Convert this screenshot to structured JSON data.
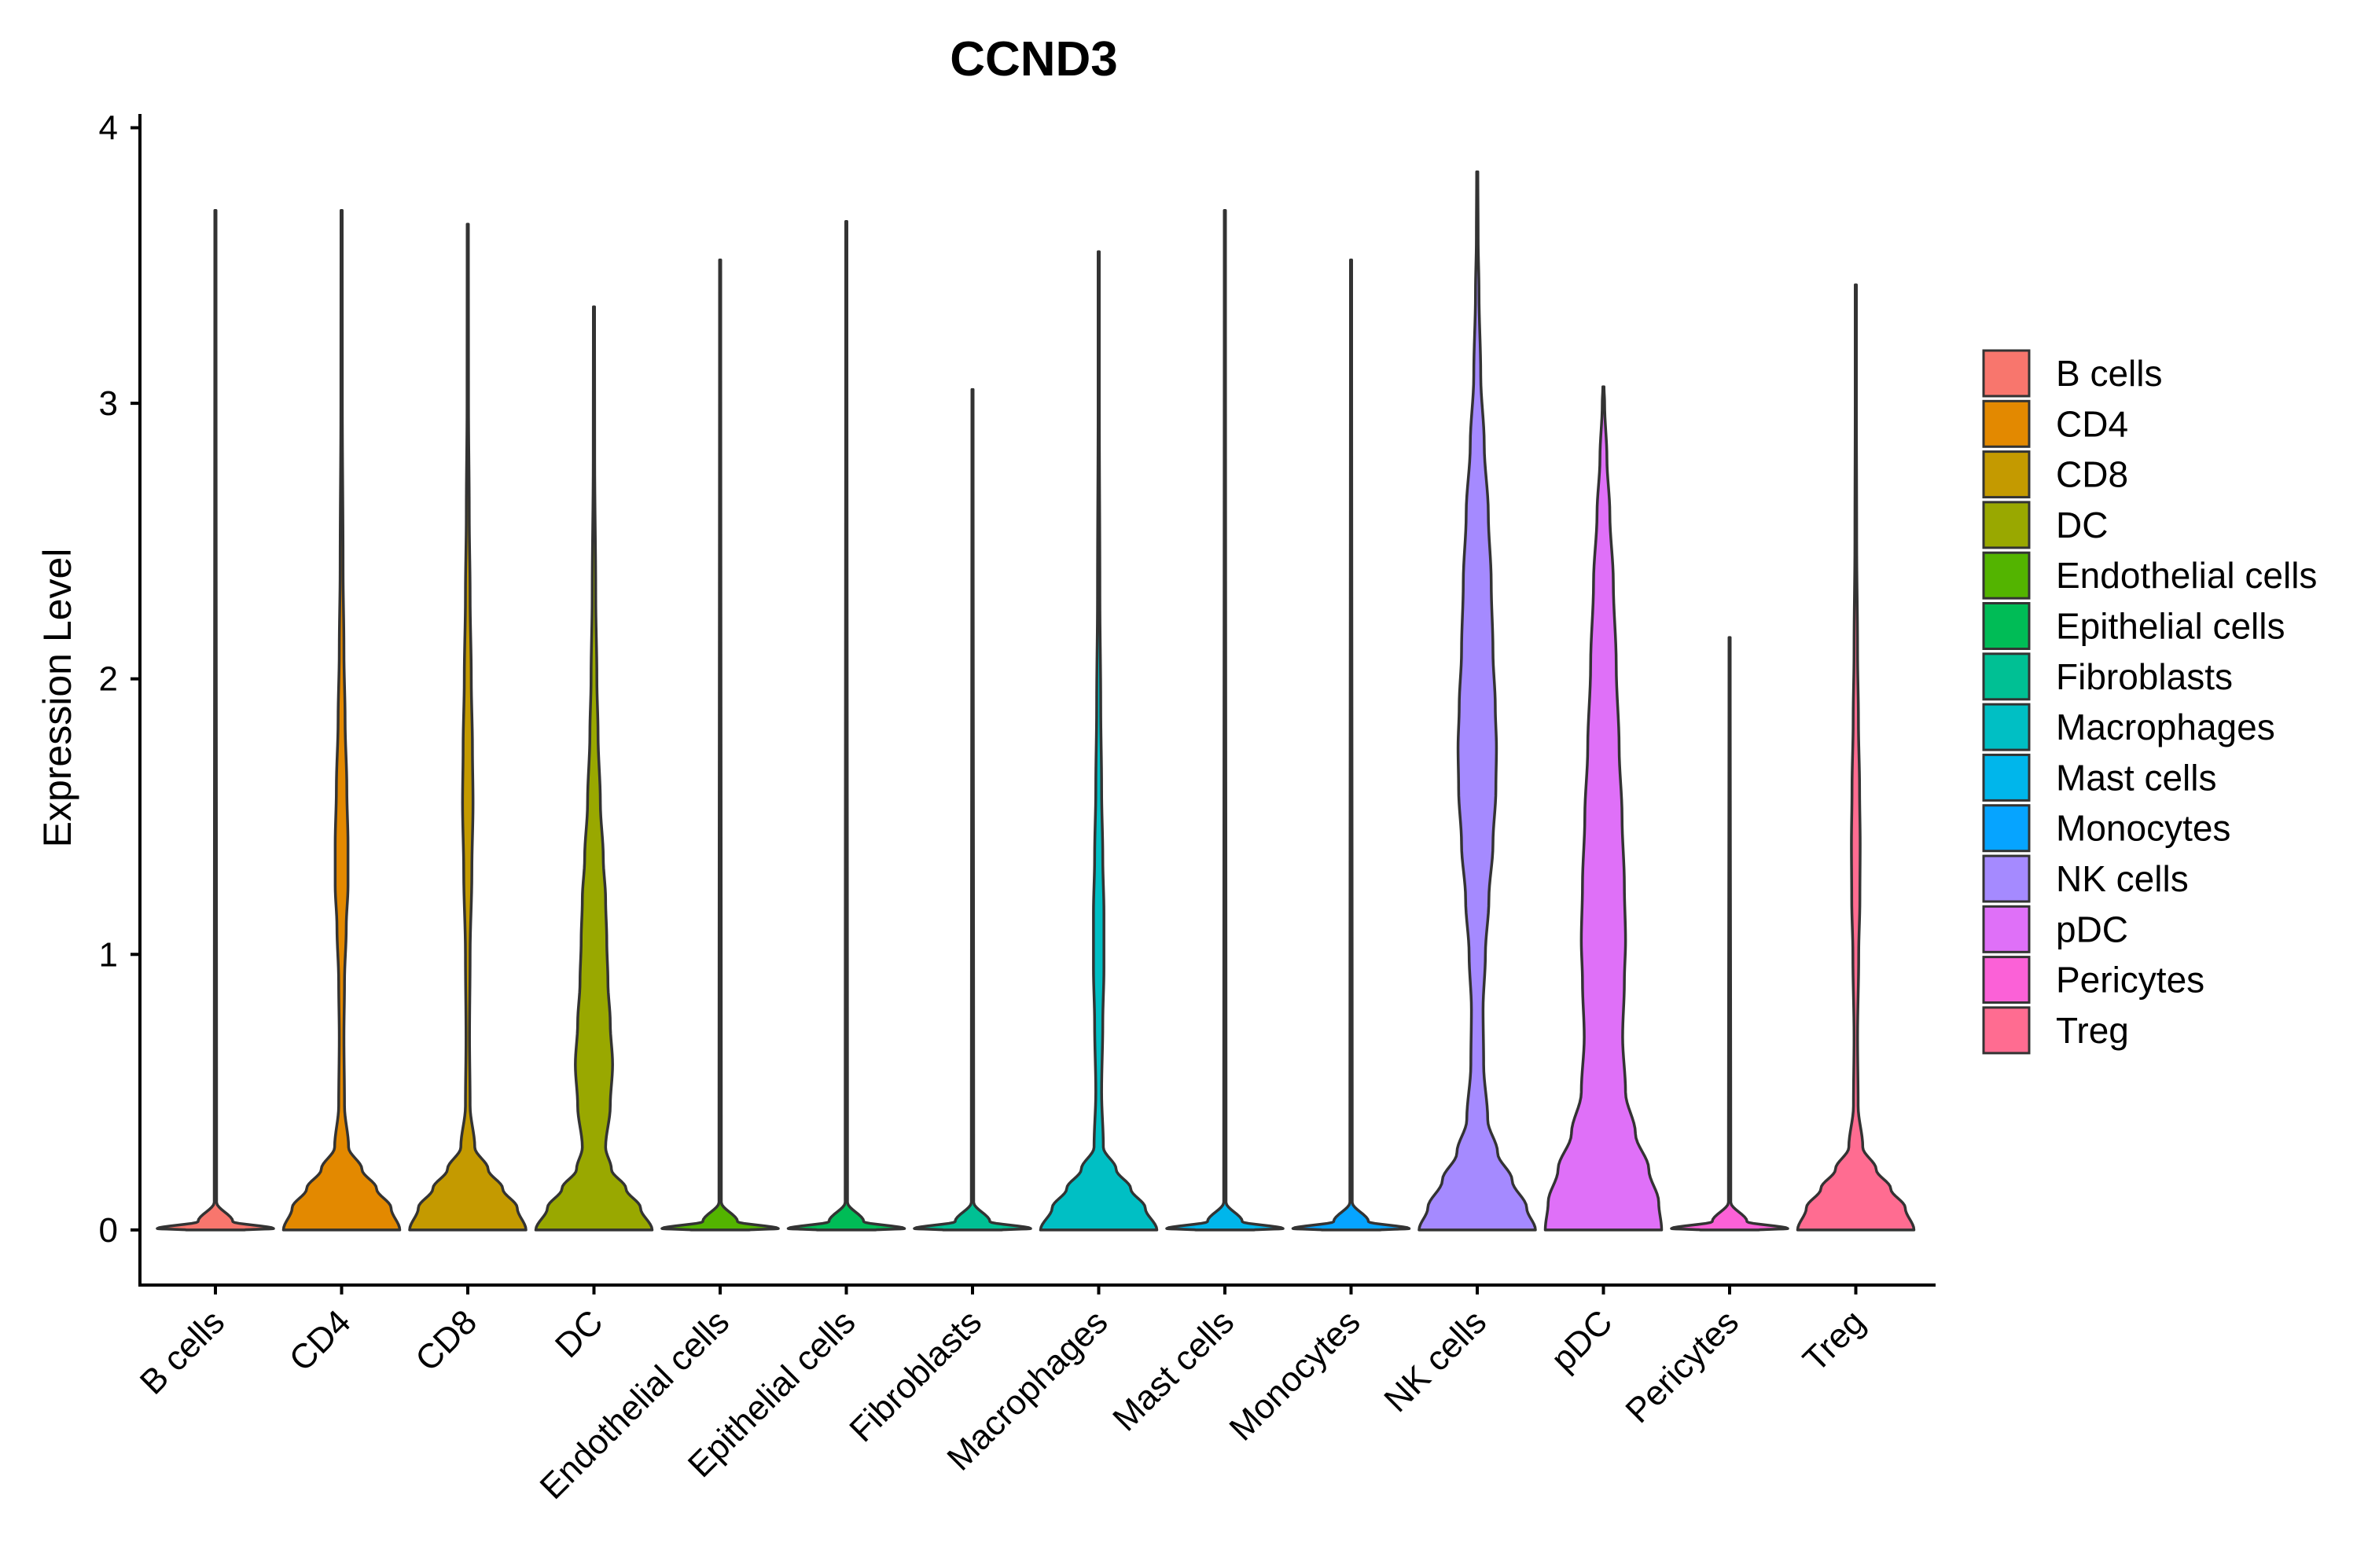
{
  "chart_data": {
    "type": "violin",
    "title": "CCND3",
    "xlabel": "",
    "ylabel": "Expression Level",
    "ylim": [
      -0.2,
      4.05
    ],
    "yticks": [
      0,
      1,
      2,
      3,
      4
    ],
    "yticklabels": [
      "0",
      "1",
      "2",
      "3",
      "4"
    ],
    "categories": [
      "B cells",
      "CD4",
      "CD8",
      "DC",
      "Endothelial cells",
      "Epithelial cells",
      "Fibroblasts",
      "Macrophages",
      "Mast cells",
      "Monocytes",
      "NK cells",
      "pDC",
      "Pericytes",
      "Treg"
    ],
    "series": [
      {
        "name": "B cells",
        "color": "#F8766D",
        "max": 3.7,
        "profile": [
          [
            0,
            0.5
          ],
          [
            0.005,
            1
          ],
          [
            0.03,
            0.3
          ],
          [
            0.1,
            0.02
          ],
          [
            3.7,
            0.01
          ]
        ]
      },
      {
        "name": "CD4",
        "color": "#E38900",
        "max": 3.7,
        "profile": [
          [
            0,
            1
          ],
          [
            0.08,
            0.85
          ],
          [
            0.15,
            0.6
          ],
          [
            0.22,
            0.35
          ],
          [
            0.3,
            0.12
          ],
          [
            0.45,
            0.05
          ],
          [
            0.7,
            0.04
          ],
          [
            0.9,
            0.05
          ],
          [
            1.1,
            0.08
          ],
          [
            1.25,
            0.11
          ],
          [
            1.4,
            0.11
          ],
          [
            1.6,
            0.09
          ],
          [
            1.85,
            0.06
          ],
          [
            2.1,
            0.04
          ],
          [
            2.4,
            0.025
          ],
          [
            3.0,
            0.012
          ],
          [
            3.7,
            0.01
          ]
        ]
      },
      {
        "name": "CD8",
        "color": "#C49A00",
        "max": 3.65,
        "profile": [
          [
            0,
            1
          ],
          [
            0.08,
            0.85
          ],
          [
            0.15,
            0.6
          ],
          [
            0.22,
            0.35
          ],
          [
            0.3,
            0.12
          ],
          [
            0.45,
            0.04
          ],
          [
            0.7,
            0.03
          ],
          [
            1.0,
            0.04
          ],
          [
            1.3,
            0.07
          ],
          [
            1.55,
            0.09
          ],
          [
            1.75,
            0.08
          ],
          [
            2.0,
            0.06
          ],
          [
            2.3,
            0.04
          ],
          [
            2.6,
            0.025
          ],
          [
            3.0,
            0.012
          ],
          [
            3.65,
            0.01
          ]
        ]
      },
      {
        "name": "DC",
        "color": "#99A800",
        "max": 3.35,
        "profile": [
          [
            0,
            1
          ],
          [
            0.08,
            0.8
          ],
          [
            0.15,
            0.55
          ],
          [
            0.22,
            0.3
          ],
          [
            0.3,
            0.2
          ],
          [
            0.45,
            0.28
          ],
          [
            0.6,
            0.32
          ],
          [
            0.75,
            0.28
          ],
          [
            0.9,
            0.24
          ],
          [
            1.05,
            0.22
          ],
          [
            1.2,
            0.2
          ],
          [
            1.35,
            0.16
          ],
          [
            1.55,
            0.11
          ],
          [
            1.8,
            0.07
          ],
          [
            2.0,
            0.05
          ],
          [
            2.3,
            0.03
          ],
          [
            2.8,
            0.012
          ],
          [
            3.35,
            0.01
          ]
        ]
      },
      {
        "name": "Endothelial cells",
        "color": "#53B400",
        "max": 3.52,
        "profile": [
          [
            0,
            0.5
          ],
          [
            0.005,
            1
          ],
          [
            0.03,
            0.3
          ],
          [
            0.1,
            0.02
          ],
          [
            3.52,
            0.01
          ]
        ]
      },
      {
        "name": "Epithelial cells",
        "color": "#00BC56",
        "max": 3.66,
        "profile": [
          [
            0,
            0.5
          ],
          [
            0.005,
            1
          ],
          [
            0.03,
            0.3
          ],
          [
            0.1,
            0.02
          ],
          [
            3.66,
            0.01
          ]
        ]
      },
      {
        "name": "Fibroblasts",
        "color": "#00C094",
        "max": 3.05,
        "profile": [
          [
            0,
            0.5
          ],
          [
            0.005,
            1
          ],
          [
            0.03,
            0.3
          ],
          [
            0.1,
            0.02
          ],
          [
            3.05,
            0.01
          ]
        ]
      },
      {
        "name": "Macrophages",
        "color": "#00BFC4",
        "max": 3.55,
        "profile": [
          [
            0,
            1
          ],
          [
            0.08,
            0.8
          ],
          [
            0.15,
            0.55
          ],
          [
            0.22,
            0.3
          ],
          [
            0.3,
            0.08
          ],
          [
            0.5,
            0.05
          ],
          [
            0.75,
            0.07
          ],
          [
            0.95,
            0.09
          ],
          [
            1.15,
            0.09
          ],
          [
            1.35,
            0.07
          ],
          [
            1.6,
            0.05
          ],
          [
            1.9,
            0.035
          ],
          [
            2.3,
            0.02
          ],
          [
            3.0,
            0.01
          ],
          [
            3.55,
            0.01
          ]
        ]
      },
      {
        "name": "Mast cells",
        "color": "#00B6EB",
        "max": 3.7,
        "profile": [
          [
            0,
            0.5
          ],
          [
            0.005,
            1
          ],
          [
            0.03,
            0.3
          ],
          [
            0.1,
            0.02
          ],
          [
            3.7,
            0.01
          ]
        ]
      },
      {
        "name": "Monocytes",
        "color": "#06A4FF",
        "max": 3.52,
        "profile": [
          [
            0,
            0.5
          ],
          [
            0.005,
            1
          ],
          [
            0.03,
            0.3
          ],
          [
            0.1,
            0.02
          ],
          [
            3.52,
            0.01
          ]
        ]
      },
      {
        "name": "NK cells",
        "color": "#A58AFF",
        "max": 3.84,
        "profile": [
          [
            0,
            1
          ],
          [
            0.08,
            0.85
          ],
          [
            0.18,
            0.6
          ],
          [
            0.28,
            0.35
          ],
          [
            0.4,
            0.18
          ],
          [
            0.6,
            0.11
          ],
          [
            0.8,
            0.1
          ],
          [
            1.0,
            0.14
          ],
          [
            1.2,
            0.2
          ],
          [
            1.4,
            0.27
          ],
          [
            1.6,
            0.32
          ],
          [
            1.75,
            0.33
          ],
          [
            1.9,
            0.31
          ],
          [
            2.1,
            0.27
          ],
          [
            2.35,
            0.24
          ],
          [
            2.6,
            0.19
          ],
          [
            2.85,
            0.12
          ],
          [
            3.1,
            0.06
          ],
          [
            3.4,
            0.03
          ],
          [
            3.6,
            0.015
          ],
          [
            3.84,
            0.01
          ]
        ]
      },
      {
        "name": "pDC",
        "color": "#DF70F8",
        "max": 3.06,
        "profile": [
          [
            0,
            1
          ],
          [
            0.1,
            0.95
          ],
          [
            0.22,
            0.78
          ],
          [
            0.35,
            0.55
          ],
          [
            0.5,
            0.38
          ],
          [
            0.7,
            0.33
          ],
          [
            0.9,
            0.36
          ],
          [
            1.05,
            0.38
          ],
          [
            1.25,
            0.36
          ],
          [
            1.5,
            0.32
          ],
          [
            1.75,
            0.27
          ],
          [
            2.05,
            0.22
          ],
          [
            2.35,
            0.17
          ],
          [
            2.6,
            0.11
          ],
          [
            2.8,
            0.06
          ],
          [
            3.0,
            0.02
          ],
          [
            3.06,
            0.01
          ]
        ]
      },
      {
        "name": "Pericytes",
        "color": "#FB61D7",
        "max": 2.15,
        "profile": [
          [
            0,
            0.5
          ],
          [
            0.005,
            1
          ],
          [
            0.03,
            0.3
          ],
          [
            0.1,
            0.02
          ],
          [
            2.15,
            0.01
          ]
        ]
      },
      {
        "name": "Treg",
        "color": "#FF6C91",
        "max": 3.43,
        "profile": [
          [
            0,
            1
          ],
          [
            0.08,
            0.85
          ],
          [
            0.15,
            0.6
          ],
          [
            0.22,
            0.35
          ],
          [
            0.3,
            0.12
          ],
          [
            0.45,
            0.04
          ],
          [
            0.7,
            0.03
          ],
          [
            1.0,
            0.05
          ],
          [
            1.2,
            0.07
          ],
          [
            1.4,
            0.075
          ],
          [
            1.6,
            0.065
          ],
          [
            1.85,
            0.045
          ],
          [
            2.1,
            0.03
          ],
          [
            2.5,
            0.015
          ],
          [
            3.0,
            0.01
          ],
          [
            3.43,
            0.01
          ]
        ]
      }
    ],
    "legend": {
      "position": "right",
      "entries": [
        "B cells",
        "CD4",
        "CD8",
        "DC",
        "Endothelial cells",
        "Epithelial cells",
        "Fibroblasts",
        "Macrophages",
        "Mast cells",
        "Monocytes",
        "NK cells",
        "pDC",
        "Pericytes",
        "Treg"
      ]
    },
    "grid": false
  }
}
